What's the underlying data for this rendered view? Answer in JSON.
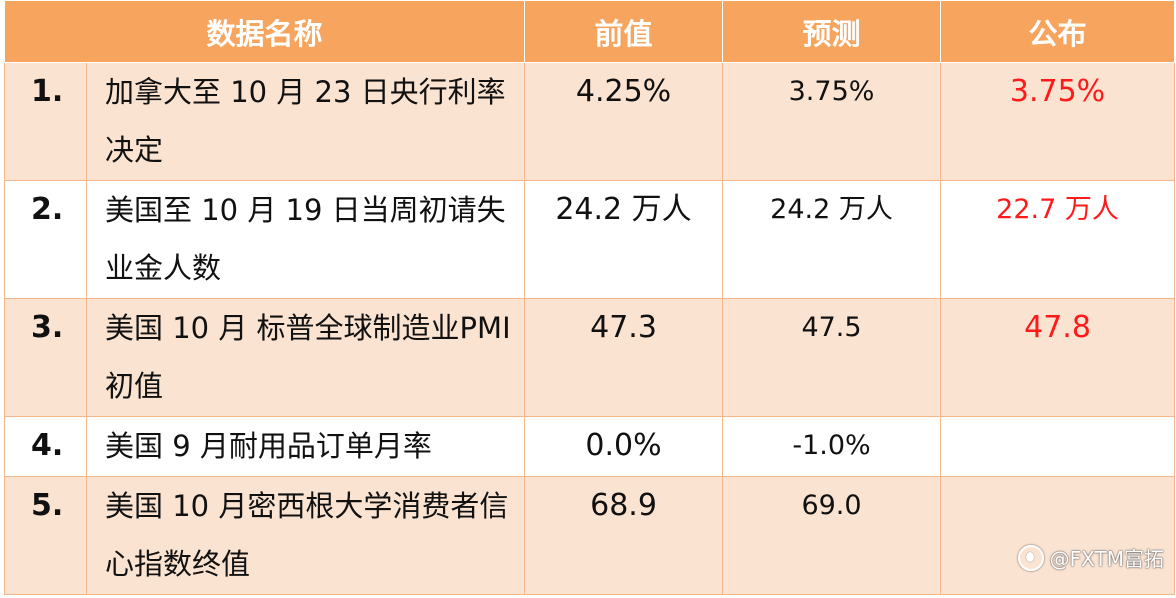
{
  "header": {
    "col_name": "数据名称",
    "col_prev": "前值",
    "col_forecast": "预测",
    "col_actual": "公布"
  },
  "rows": [
    {
      "index": "1.",
      "name": "加拿大至 10 月 23 日央行利率决定",
      "prev": "4.25%",
      "forecast": "3.75%",
      "actual": "3.75%"
    },
    {
      "index": "2.",
      "name": "美国至 10 月 19 日当周初请失业金人数",
      "prev": "24.2 万人",
      "forecast": "24.2 万人",
      "actual": "22.7 万人"
    },
    {
      "index": "3.",
      "name": "美国 10 月 标普全球制造业PMI 初值",
      "prev": "47.3",
      "forecast": "47.5",
      "actual": "47.8"
    },
    {
      "index": "4.",
      "name": "美国 9 月耐用品订单月率",
      "prev": "0.0%",
      "forecast": "-1.0%",
      "actual": ""
    },
    {
      "index": "5.",
      "name": "美国 10 月密西根大学消费者信心指数终值",
      "prev": "68.9",
      "forecast": "69.0",
      "actual": ""
    }
  ],
  "watermark": "@FXTM富拓",
  "colors": {
    "header_bg": "#f7a45e",
    "row_shade": "#fbe3d2",
    "actual_text": "#ff1a1a"
  },
  "icons": {
    "watermark": "weibo-logo-icon"
  }
}
